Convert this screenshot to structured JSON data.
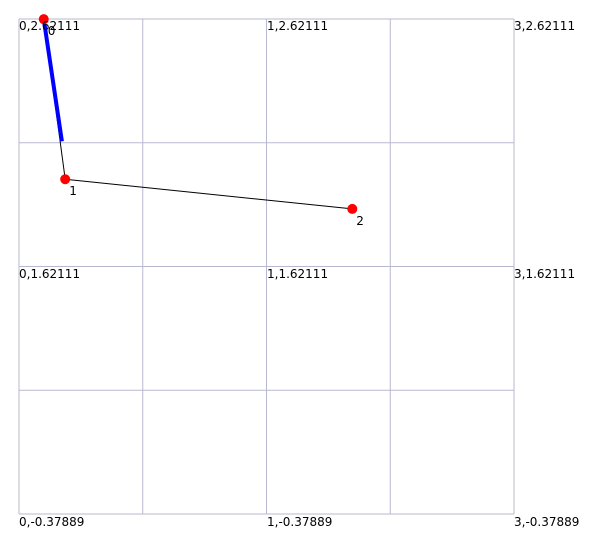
{
  "chart_data": {
    "type": "diagram",
    "xlim": [
      0,
      3
    ],
    "ylim": [
      -0.37889,
      2.62111
    ],
    "grid": true,
    "corner_labels": {
      "top_left": "0,2.62111",
      "top_mid": "1,2.62111",
      "top_right": "3,2.62111",
      "mid_left": "0,1.62111",
      "mid_mid": "1,1.62111",
      "mid_right": "3,1.62111",
      "bot_left": "0,-0.37889",
      "bot_mid": "1,-0.37889",
      "bot_right": "3,-0.37889"
    },
    "nodes": [
      {
        "id": "0",
        "x": 0.15,
        "y": 2.62
      },
      {
        "id": "1",
        "x": 0.28,
        "y": 1.65
      },
      {
        "id": "2",
        "x": 2.02,
        "y": 1.47
      }
    ],
    "edges": [
      {
        "from": "0",
        "to": "1"
      },
      {
        "from": "1",
        "to": "2"
      }
    ],
    "highlight": {
      "from": {
        "x": 0.15,
        "y": 2.62
      },
      "to": {
        "x": 0.26,
        "y": 1.88
      }
    },
    "colors": {
      "grid": "#b8b8d0",
      "node": "#ff0000",
      "edge": "#000000",
      "highlight": "#0000ff"
    }
  }
}
